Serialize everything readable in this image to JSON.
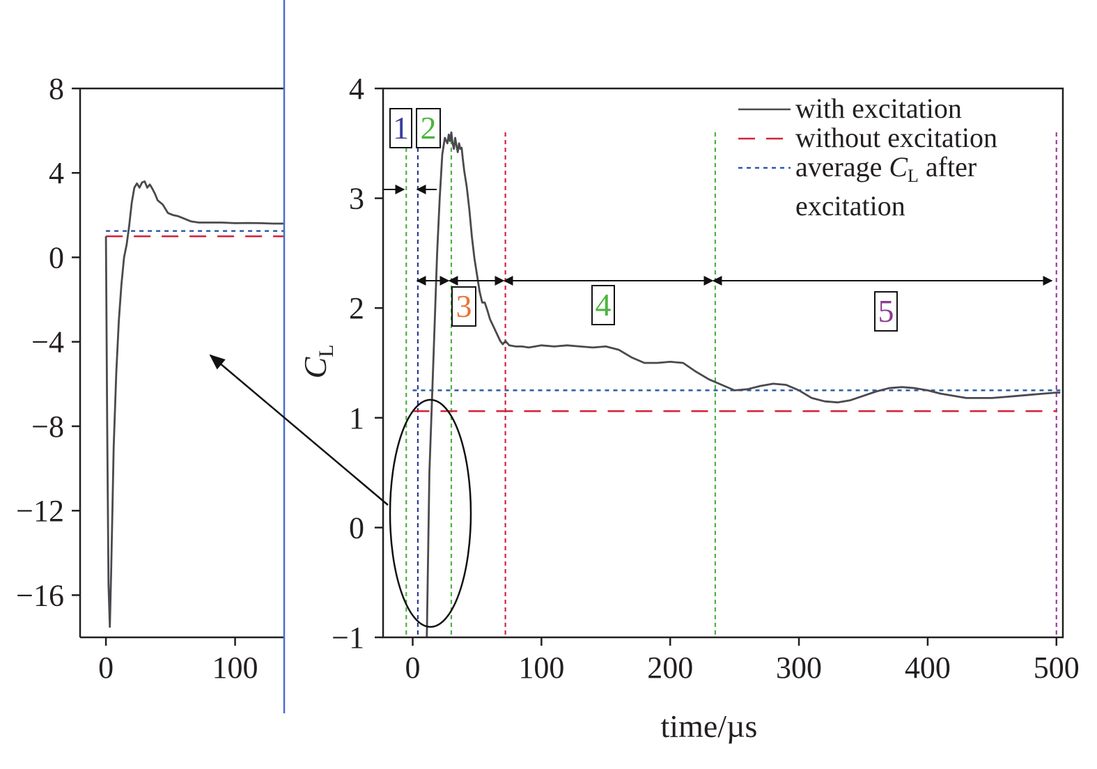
{
  "chart_data": [
    {
      "type": "line",
      "panel": "inset",
      "xlim": [
        -20,
        138
      ],
      "ylim": [
        -18,
        8
      ],
      "x_ticks": [
        "0",
        "100"
      ],
      "y_ticks": [
        "8",
        "4",
        "0",
        "−4",
        "−8",
        "−12",
        "−16"
      ],
      "x_tick_values": [
        0,
        100
      ],
      "y_tick_values": [
        8,
        4,
        0,
        -4,
        -8,
        -12,
        -16
      ],
      "grid": false,
      "series": [
        {
          "name": "with excitation",
          "color": "#4a4a4e",
          "style": "solid",
          "x": [
            0,
            1,
            2,
            3,
            4,
            5,
            6,
            8,
            10,
            12,
            14,
            16,
            18,
            20,
            22,
            24,
            26,
            28,
            30,
            32,
            34,
            36,
            38,
            40,
            44,
            48,
            52,
            56,
            60,
            66,
            72,
            80,
            90,
            100,
            110,
            120,
            130,
            138
          ],
          "y": [
            1.0,
            -8.0,
            -15.5,
            -17.5,
            -15.0,
            -12.0,
            -9.0,
            -5.5,
            -3.0,
            -1.3,
            0.0,
            0.6,
            1.5,
            2.6,
            3.3,
            3.5,
            3.3,
            3.55,
            3.6,
            3.3,
            3.45,
            3.25,
            3.0,
            2.7,
            2.5,
            2.1,
            2.0,
            1.95,
            1.85,
            1.7,
            1.65,
            1.65,
            1.65,
            1.62,
            1.63,
            1.62,
            1.6,
            1.6
          ]
        },
        {
          "name": "without excitation",
          "color": "#d2233a",
          "style": "dashed",
          "x": [
            0,
            138
          ],
          "y": [
            1.0,
            1.0
          ]
        },
        {
          "name": "average CL after excitation",
          "color": "#2c5aa8",
          "style": "dotted",
          "x": [
            0,
            138
          ],
          "y": [
            1.25,
            1.25
          ]
        }
      ]
    },
    {
      "type": "line",
      "panel": "main",
      "xlabel": "time/µs",
      "ylabel_main": "C",
      "ylabel_sub": "L",
      "xlim": [
        -23,
        505
      ],
      "ylim": [
        -1,
        4
      ],
      "x_ticks": [
        "0",
        "100",
        "200",
        "300",
        "400",
        "500"
      ],
      "y_ticks": [
        "4",
        "3",
        "2",
        "1",
        "0",
        "−1"
      ],
      "x_tick_values": [
        0,
        100,
        200,
        300,
        400,
        500
      ],
      "y_tick_values": [
        4,
        3,
        2,
        1,
        0,
        -1
      ],
      "grid": false,
      "legend_position": "top-right",
      "legend": [
        {
          "label": "with excitation",
          "color": "#4a4a4e",
          "style": "solid"
        },
        {
          "label": "without excitation",
          "color": "#d2233a",
          "style": "dashed"
        },
        {
          "label_pre": "average ",
          "label_main": "C",
          "label_sub": "L",
          "label_post": " after",
          "label_line2": "excitation",
          "color": "#2c5aa8",
          "style": "dotted"
        }
      ],
      "series": [
        {
          "name": "with excitation",
          "color": "#4a4a4e",
          "style": "solid",
          "x": [
            11,
            13,
            16,
            19,
            21,
            23,
            25,
            27,
            28,
            29,
            30,
            31,
            32,
            33,
            34,
            35,
            36,
            37,
            38,
            39,
            40,
            42,
            44,
            46,
            48,
            50,
            52,
            54,
            56,
            58,
            60,
            62,
            64,
            66,
            68,
            70,
            72,
            75,
            80,
            85,
            90,
            95,
            100,
            110,
            120,
            130,
            140,
            150,
            160,
            170,
            180,
            190,
            200,
            210,
            220,
            230,
            240,
            250,
            260,
            270,
            280,
            290,
            300,
            310,
            320,
            330,
            340,
            350,
            360,
            370,
            380,
            390,
            400,
            410,
            420,
            430,
            440,
            450,
            460,
            470,
            480,
            490,
            500,
            503
          ],
          "y": [
            -1.0,
            0.5,
            1.5,
            2.5,
            3.0,
            3.4,
            3.55,
            3.5,
            3.58,
            3.52,
            3.6,
            3.5,
            3.45,
            3.55,
            3.48,
            3.42,
            3.5,
            3.45,
            3.46,
            3.35,
            3.25,
            3.1,
            2.9,
            2.65,
            2.45,
            2.3,
            2.15,
            2.05,
            2.05,
            1.98,
            1.9,
            1.85,
            1.8,
            1.75,
            1.7,
            1.67,
            1.7,
            1.66,
            1.65,
            1.65,
            1.64,
            1.65,
            1.66,
            1.65,
            1.66,
            1.65,
            1.64,
            1.65,
            1.62,
            1.55,
            1.5,
            1.5,
            1.51,
            1.5,
            1.42,
            1.35,
            1.3,
            1.25,
            1.26,
            1.29,
            1.31,
            1.3,
            1.25,
            1.18,
            1.15,
            1.14,
            1.16,
            1.2,
            1.24,
            1.27,
            1.28,
            1.27,
            1.25,
            1.22,
            1.2,
            1.18,
            1.18,
            1.18,
            1.19,
            1.2,
            1.21,
            1.22,
            1.23,
            1.23
          ]
        },
        {
          "name": "without excitation",
          "color": "#d2233a",
          "style": "dashed",
          "x": [
            0,
            500
          ],
          "y": [
            1.06,
            1.06
          ]
        },
        {
          "name": "average CL after excitation",
          "color": "#2c5aa8",
          "style": "dotted",
          "x": [
            0,
            503
          ],
          "y": [
            1.25,
            1.25
          ]
        }
      ],
      "vertical_lines": [
        {
          "x": -5,
          "color": "#4bb43e"
        },
        {
          "x": 4,
          "color": "#2c3d8f"
        },
        {
          "x": 30,
          "color": "#4bb43e"
        },
        {
          "x": 72,
          "color": "#d2233a"
        },
        {
          "x": 235,
          "color": "#4bb43e"
        },
        {
          "x": 500,
          "color": "#9b3e9b"
        }
      ],
      "phases": [
        {
          "label": "1",
          "color": "#3a3f9e"
        },
        {
          "label": "2",
          "color": "#4bb43e"
        },
        {
          "label": "3",
          "color": "#e8743b"
        },
        {
          "label": "4",
          "color": "#4bb43e"
        },
        {
          "label": "5",
          "color": "#8e3a8e"
        }
      ]
    }
  ]
}
